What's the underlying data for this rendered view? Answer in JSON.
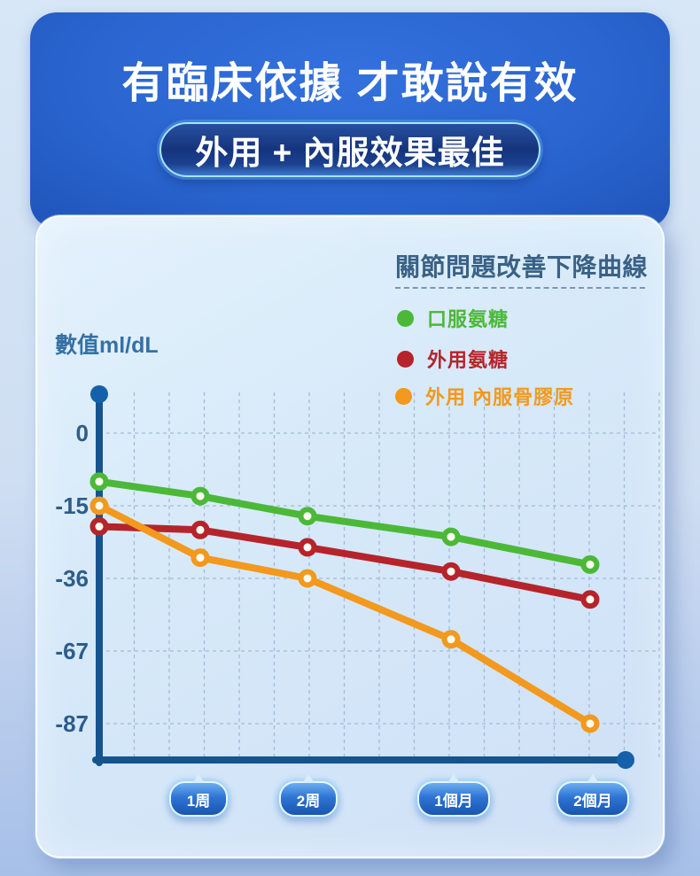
{
  "header": {
    "title": "有臨床依據 才敢說有效",
    "badge": "外用 + 內服效果最佳"
  },
  "chart": {
    "title": "關節問題改善下降曲線",
    "y_axis_label": "數值ml/dL",
    "legend": [
      {
        "name": "口服氨糖",
        "color": "#4cb838"
      },
      {
        "name": "外用氨糖",
        "color": "#b5242b"
      },
      {
        "name": "外用 內服骨膠原",
        "color": "#f2991e"
      }
    ]
  },
  "chart_data": {
    "type": "line",
    "title": "關節問題改善下降曲線",
    "ylabel": "數值ml/dL",
    "xlabel": "",
    "categories": [
      "1周",
      "2周",
      "1個月",
      "2個月"
    ],
    "start_at_axis": true,
    "yticks": [
      0,
      -15,
      -36,
      -67,
      -87
    ],
    "grid": true,
    "legend_position": "top-right",
    "series": [
      {
        "name": "口服氨糖",
        "color": "#4cb838",
        "values": [
          -10,
          -13,
          -18,
          -24,
          -32
        ]
      },
      {
        "name": "外用氨糖",
        "color": "#b5242b",
        "values": [
          -21,
          -22,
          -27,
          -34,
          -45
        ]
      },
      {
        "name": "外用 內服骨膠原",
        "color": "#f2991e",
        "values": [
          -15,
          -30,
          -36,
          -62,
          -87
        ]
      }
    ]
  }
}
